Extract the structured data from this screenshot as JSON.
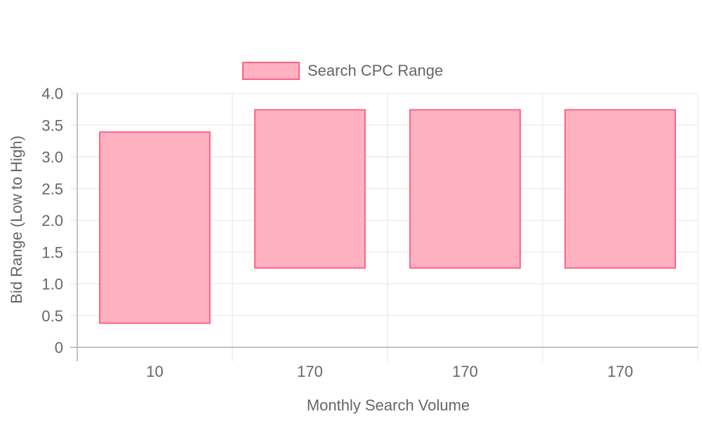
{
  "chart_data": {
    "type": "bar",
    "categories": [
      "10",
      "170",
      "170",
      "170"
    ],
    "series": [
      {
        "name": "Search CPC Range",
        "ranges": [
          [
            0.38,
            3.39
          ],
          [
            1.25,
            3.74
          ],
          [
            1.25,
            3.74
          ],
          [
            1.25,
            3.74
          ]
        ]
      }
    ],
    "xlabel": "Monthly Search Volume",
    "ylabel": "Bid Range (Low to High)",
    "ylim": [
      0,
      4
    ],
    "yticks": [
      "0",
      "0.5",
      "1.0",
      "1.5",
      "2.0",
      "2.5",
      "3.0",
      "3.5",
      "4.0"
    ],
    "grid": true,
    "legend_position": "top",
    "colors": {
      "fill": "#ffb1c1",
      "stroke": "#ff6384",
      "grid": "#e5e5e5",
      "axis": "#b0b0b0"
    }
  }
}
